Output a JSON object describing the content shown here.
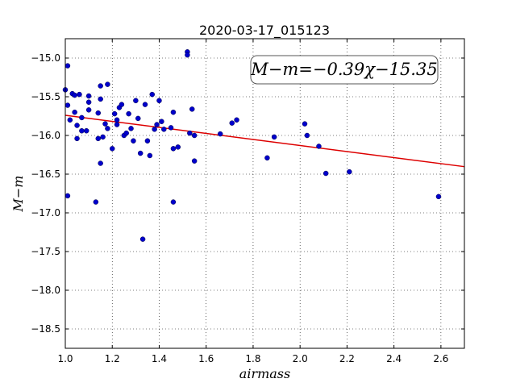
{
  "chart_data": {
    "type": "scatter",
    "title": "2020-03-17_015123",
    "xlabel": "airmass",
    "ylabel": "M−m",
    "xlim": [
      1.0,
      2.7
    ],
    "ylim": [
      -18.75,
      -14.75
    ],
    "x_ticks": [
      1.0,
      1.2,
      1.4,
      1.6,
      1.8,
      2.0,
      2.2,
      2.4,
      2.6
    ],
    "x_tick_labels": [
      "1.0",
      "1.2",
      "1.4",
      "1.6",
      "1.8",
      "2.0",
      "2.2",
      "2.4",
      "2.6"
    ],
    "y_ticks": [
      -15.0,
      -15.5,
      -16.0,
      -16.5,
      -17.0,
      -17.5,
      -18.0,
      -18.5
    ],
    "y_tick_labels": [
      "−15.0",
      "−15.5",
      "−16.0",
      "−16.5",
      "−17.0",
      "−17.5",
      "−18.0",
      "−18.5"
    ],
    "grid": true,
    "marker_color": "#0000cc",
    "fit_color": "#dd0000",
    "fit": {
      "slope": -0.39,
      "intercept": -15.35
    },
    "annotation": "M−m=−0.39χ−15.35",
    "points": [
      [
        1.0,
        -15.41
      ],
      [
        1.01,
        -15.1
      ],
      [
        1.01,
        -15.61
      ],
      [
        1.01,
        -16.78
      ],
      [
        1.02,
        -15.8
      ],
      [
        1.03,
        -15.46
      ],
      [
        1.04,
        -15.7
      ],
      [
        1.04,
        -15.48
      ],
      [
        1.05,
        -15.87
      ],
      [
        1.05,
        -16.04
      ],
      [
        1.06,
        -15.47
      ],
      [
        1.07,
        -15.77
      ],
      [
        1.07,
        -15.94
      ],
      [
        1.09,
        -15.94
      ],
      [
        1.1,
        -15.57
      ],
      [
        1.1,
        -15.67
      ],
      [
        1.1,
        -15.49
      ],
      [
        1.13,
        -16.86
      ],
      [
        1.14,
        -15.71
      ],
      [
        1.14,
        -16.04
      ],
      [
        1.15,
        -15.36
      ],
      [
        1.15,
        -15.53
      ],
      [
        1.15,
        -16.36
      ],
      [
        1.16,
        -16.02
      ],
      [
        1.17,
        -15.85
      ],
      [
        1.18,
        -15.91
      ],
      [
        1.18,
        -15.34
      ],
      [
        1.2,
        -16.17
      ],
      [
        1.21,
        -15.72
      ],
      [
        1.22,
        -15.86
      ],
      [
        1.22,
        -15.8
      ],
      [
        1.23,
        -15.64
      ],
      [
        1.24,
        -15.6
      ],
      [
        1.25,
        -16.0
      ],
      [
        1.26,
        -15.97
      ],
      [
        1.27,
        -15.72
      ],
      [
        1.28,
        -15.91
      ],
      [
        1.29,
        -16.07
      ],
      [
        1.3,
        -15.55
      ],
      [
        1.31,
        -15.78
      ],
      [
        1.32,
        -16.23
      ],
      [
        1.33,
        -17.34
      ],
      [
        1.34,
        -15.6
      ],
      [
        1.35,
        -16.07
      ],
      [
        1.36,
        -16.26
      ],
      [
        1.37,
        -15.47
      ],
      [
        1.38,
        -15.92
      ],
      [
        1.39,
        -15.86
      ],
      [
        1.4,
        -15.55
      ],
      [
        1.41,
        -15.82
      ],
      [
        1.42,
        -15.92
      ],
      [
        1.45,
        -15.9
      ],
      [
        1.46,
        -15.7
      ],
      [
        1.46,
        -16.17
      ],
      [
        1.46,
        -16.86
      ],
      [
        1.48,
        -16.15
      ],
      [
        1.52,
        -14.92
      ],
      [
        1.52,
        -14.96
      ],
      [
        1.53,
        -15.97
      ],
      [
        1.54,
        -15.66
      ],
      [
        1.55,
        -16.0
      ],
      [
        1.55,
        -16.33
      ],
      [
        1.66,
        -15.98
      ],
      [
        1.71,
        -15.84
      ],
      [
        1.73,
        -15.8
      ],
      [
        1.86,
        -16.29
      ],
      [
        1.89,
        -16.02
      ],
      [
        2.02,
        -15.85
      ],
      [
        2.03,
        -16.0
      ],
      [
        2.08,
        -16.14
      ],
      [
        2.11,
        -16.49
      ],
      [
        2.21,
        -16.47
      ],
      [
        2.59,
        -16.79
      ]
    ]
  }
}
